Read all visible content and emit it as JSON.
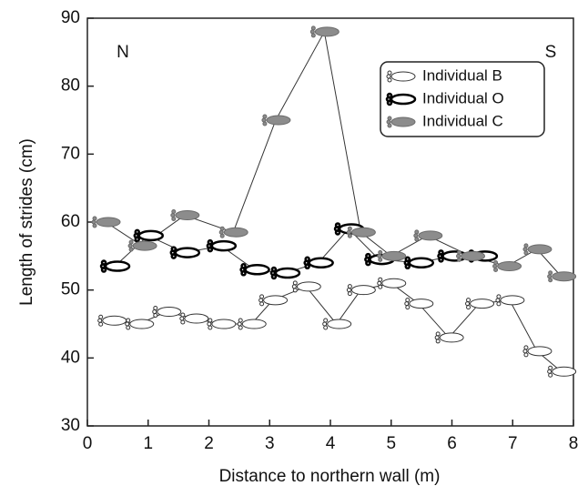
{
  "chart_data": {
    "type": "line",
    "xlabel": "Distance to northern wall (m)",
    "ylabel": "Length of strides (cm)",
    "annotations": [
      "N",
      "S"
    ],
    "xlim": [
      0,
      8
    ],
    "xticks": [
      0,
      1,
      2,
      3,
      4,
      5,
      6,
      7,
      8
    ],
    "ylim": [
      30,
      90
    ],
    "yticks": [
      30,
      40,
      50,
      60,
      70,
      80,
      90
    ],
    "legend": "upper right",
    "series": [
      {
        "name": "Individual B",
        "color": "#ffffff",
        "edge": "#333333",
        "edge_width": 1,
        "x": [
          0.4,
          0.85,
          1.3,
          1.75,
          2.2,
          2.7,
          3.05,
          3.6,
          4.1,
          4.5,
          5.0,
          5.45,
          5.95,
          6.45,
          6.95,
          7.4,
          7.8
        ],
        "values": [
          45.5,
          45,
          46.8,
          45.8,
          45,
          45,
          48.5,
          50.5,
          45,
          50,
          51,
          48,
          43,
          48,
          48.5,
          41,
          38
        ]
      },
      {
        "name": "Individual O",
        "color": "#ffffff",
        "edge": "#000000",
        "edge_width": 2.5,
        "x": [
          0.45,
          1.0,
          1.6,
          2.2,
          2.75,
          3.25,
          3.8,
          4.3,
          4.8,
          5.45,
          6.0,
          6.5
        ],
        "values": [
          53.5,
          58,
          55.5,
          56.5,
          53,
          52.5,
          54,
          59,
          54.5,
          54,
          55,
          55
        ]
      },
      {
        "name": "Individual C",
        "color": "#8c8c8c",
        "edge": "#6a6a6a",
        "edge_width": 1,
        "x": [
          0.3,
          0.9,
          1.6,
          2.4,
          3.1,
          3.9,
          4.5,
          5.0,
          5.6,
          6.3,
          6.9,
          7.4,
          7.8
        ],
        "values": [
          60,
          56.5,
          61,
          58.5,
          75,
          88,
          58.5,
          55,
          58,
          55,
          53.5,
          56,
          52
        ]
      }
    ]
  }
}
